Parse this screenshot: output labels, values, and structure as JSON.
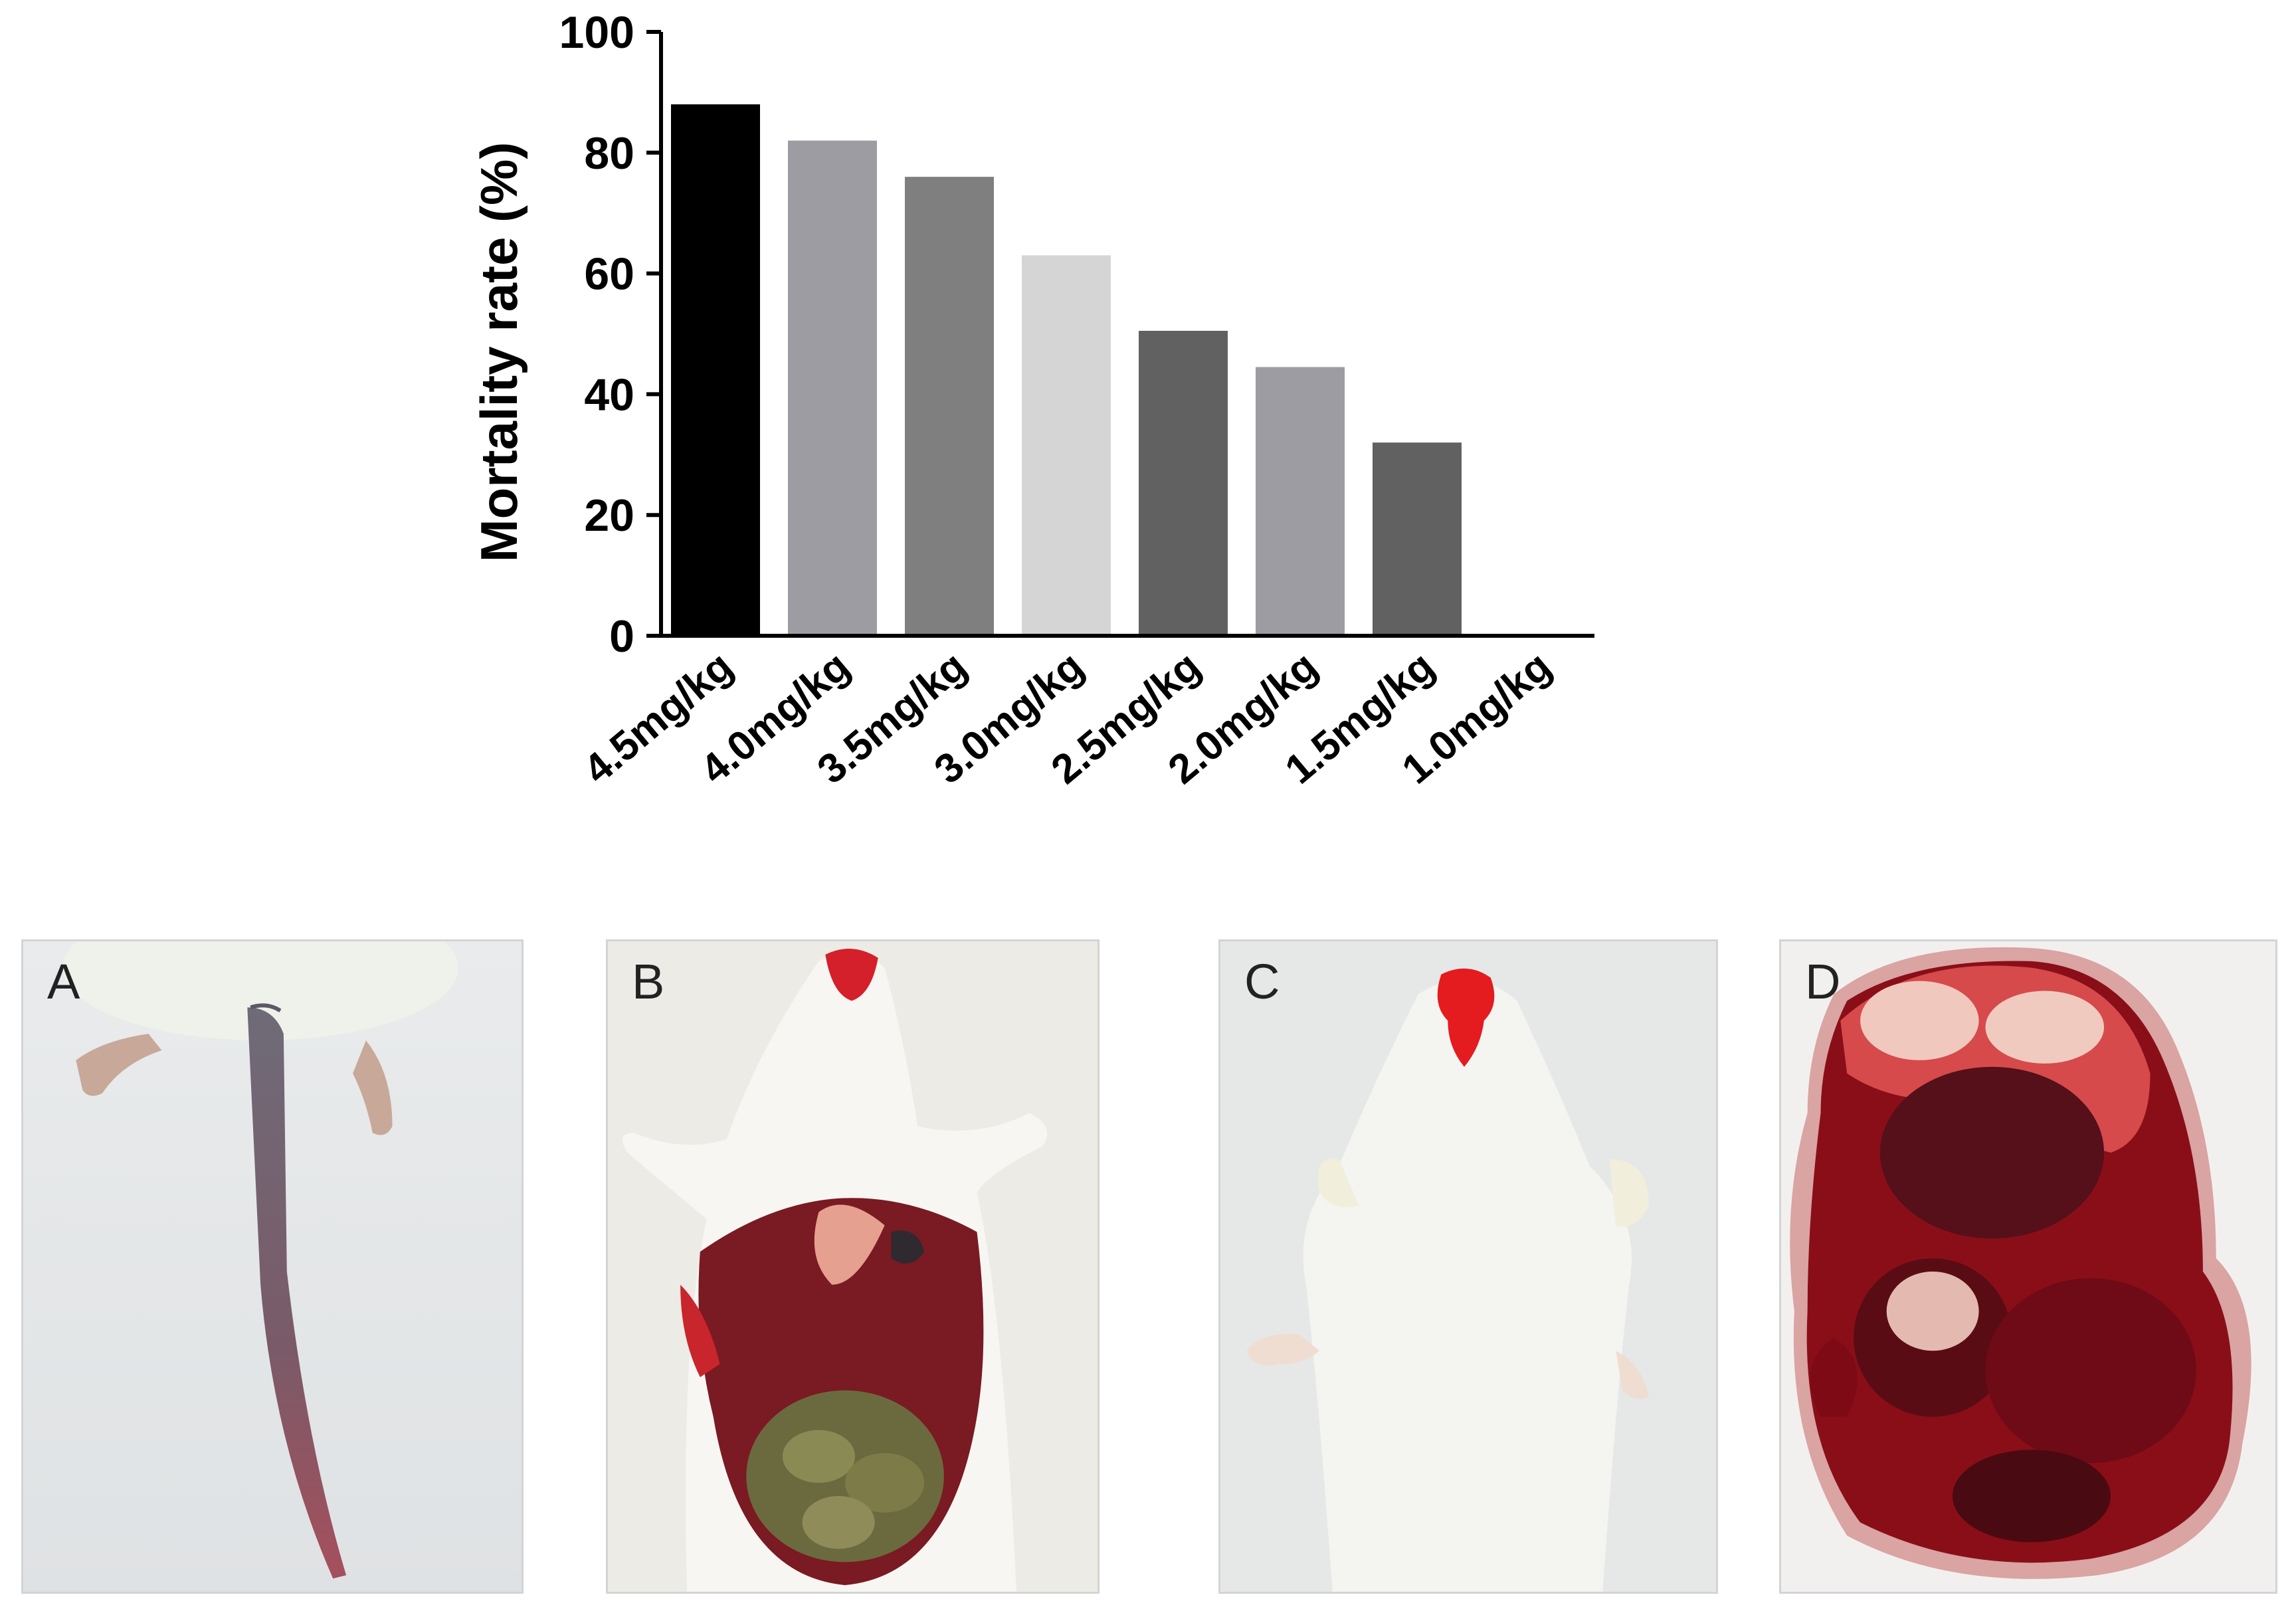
{
  "chart_data": {
    "type": "bar",
    "categories": [
      "4.5mg/kg",
      "4.0mg/kg",
      "3.5mg/kg",
      "3.0mg/kg",
      "2.5mg/kg",
      "2.0mg/kg",
      "1.5mg/kg",
      "1.0mg/kg"
    ],
    "values": [
      88,
      82,
      76,
      63,
      50.5,
      44.5,
      32,
      0
    ],
    "bar_colors": [
      "#000000",
      "#9c9ca2",
      "#7f7f7f",
      "#d5d5d5",
      "#616161",
      "#9c9ca2",
      "#616161",
      "#616161"
    ],
    "ylabel": "Mortality rate (%)",
    "xlabel": "",
    "title": "",
    "ylim": [
      0,
      100
    ],
    "yticks": [
      0,
      20,
      40,
      60,
      80,
      100
    ],
    "grid": false
  },
  "panels": [
    {
      "label": "A",
      "description_icon": "rat-tail-photo"
    },
    {
      "label": "B",
      "description_icon": "rat-dissected-abdomen-photo"
    },
    {
      "label": "C",
      "description_icon": "rat-bleeding-nose-photo"
    },
    {
      "label": "D",
      "description_icon": "hemorrhagic-organ-photo"
    }
  ]
}
